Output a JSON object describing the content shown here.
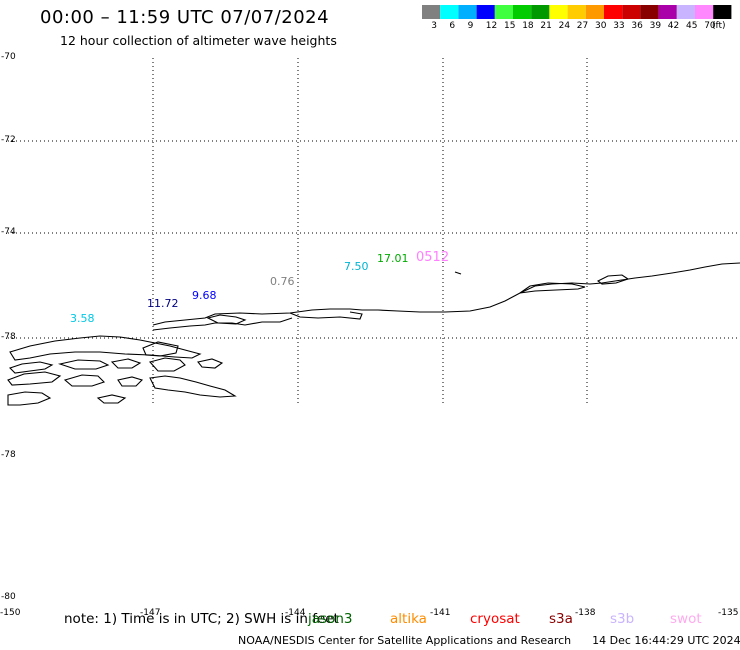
{
  "header": {
    "title": "00:00 – 11:59 UTC 07/07/2024",
    "subtitle": "12 hour collection of altimeter wave heights"
  },
  "legend": {
    "unit": "(ft)",
    "bins": [
      {
        "label": "3",
        "color": "#808080"
      },
      {
        "label": "6",
        "color": "#00ffff"
      },
      {
        "label": "9",
        "color": "#00b0ff"
      },
      {
        "label": "12",
        "color": "#0000ff"
      },
      {
        "label": "15",
        "color": "#40ff40"
      },
      {
        "label": "18",
        "color": "#00cc00"
      },
      {
        "label": "21",
        "color": "#009900"
      },
      {
        "label": "24",
        "color": "#ffff00"
      },
      {
        "label": "27",
        "color": "#ffcc00"
      },
      {
        "label": "30",
        "color": "#ff9900"
      },
      {
        "label": "33",
        "color": "#ff0000"
      },
      {
        "label": "36",
        "color": "#cc0000"
      },
      {
        "label": "39",
        "color": "#880000"
      },
      {
        "label": "42",
        "color": "#aa00aa"
      },
      {
        "label": "45",
        "color": "#c8b4ff"
      },
      {
        "label": "70",
        "color": "#ff88ff"
      },
      {
        "label": "",
        "color": "#000000"
      }
    ]
  },
  "map": {
    "lat_labels": [
      "-70",
      "-72",
      "-74",
      "-78",
      "-78",
      "-80"
    ],
    "lon_labels": [
      "-150",
      "-147",
      "-144",
      "-141",
      "-138",
      "-135"
    ],
    "wave_heights": [
      {
        "value": "3.58",
        "color": "#00c8e6"
      },
      {
        "value": "11.72",
        "color": "#000080"
      },
      {
        "value": "9.68",
        "color": "#0000ff"
      },
      {
        "value": "0.76",
        "color": "#808080"
      },
      {
        "value": "7.50",
        "color": "#00b4d2"
      },
      {
        "value": "17.01",
        "color": "#00aa00"
      },
      {
        "value": "0512",
        "color": "#ff80ff"
      }
    ]
  },
  "note": "note:  1) Time is in UTC; 2) SWH is in feet",
  "satellites": [
    {
      "name": "jason3",
      "color": "#006400"
    },
    {
      "name": "altika",
      "color": "#ff8c00"
    },
    {
      "name": "cryosat",
      "color": "#ff0000"
    },
    {
      "name": "s3a",
      "color": "#8b0000"
    },
    {
      "name": "s3b",
      "color": "#c8b4ff"
    },
    {
      "name": "swot",
      "color": "#ffaaee"
    }
  ],
  "footer": {
    "credit": "NOAA/NESDIS Center for Satellite Applications and Research",
    "timestamp": "14 Dec 16:44:29 UTC 2024"
  }
}
